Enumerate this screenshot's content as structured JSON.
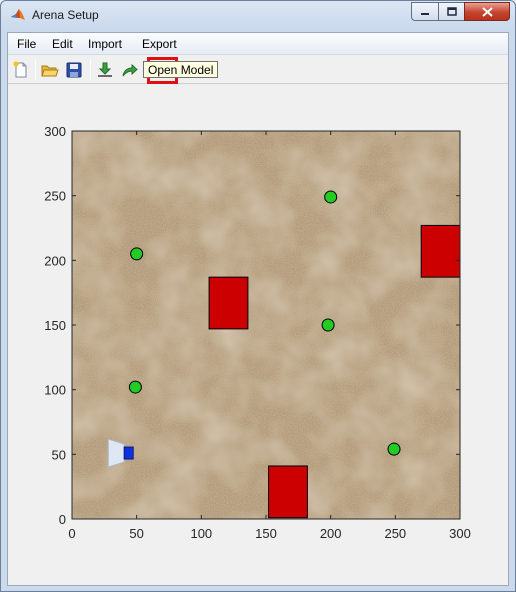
{
  "window": {
    "title": "Arena Setup"
  },
  "menu": [
    {
      "label": "File"
    },
    {
      "label": "Edit"
    },
    {
      "label": "Import"
    },
    {
      "label": "Export"
    }
  ],
  "toolbar": [
    {
      "icon": "new-file-icon"
    },
    {
      "icon": "open-folder-icon"
    },
    {
      "icon": "save-icon"
    },
    {
      "icon": "import-icon"
    },
    {
      "icon": "export-icon"
    },
    {
      "icon": "open-model-icon",
      "highlighted": true
    }
  ],
  "tooltip": {
    "text": "Open Model"
  },
  "chart_data": {
    "type": "scatter",
    "xlim": [
      0,
      300
    ],
    "ylim": [
      0,
      300
    ],
    "x_ticks": [
      "0",
      "50",
      "100",
      "150",
      "200",
      "250",
      "300"
    ],
    "y_ticks": [
      "0",
      "50",
      "100",
      "150",
      "200",
      "250",
      "300"
    ],
    "background": "sand texture image",
    "points": [
      {
        "x": 50,
        "y": 205,
        "color": "#22cc22"
      },
      {
        "x": 200,
        "y": 249,
        "color": "#22cc22"
      },
      {
        "x": 198,
        "y": 150,
        "color": "#22cc22"
      },
      {
        "x": 49,
        "y": 102,
        "color": "#22cc22"
      },
      {
        "x": 249,
        "y": 54,
        "color": "#22cc22"
      }
    ],
    "obstacles": [
      {
        "x0": 106,
        "x1": 136,
        "y0": 147,
        "y1": 187,
        "color": "#cc0000"
      },
      {
        "x0": 270,
        "x1": 300,
        "y0": 187,
        "y1": 227,
        "color": "#cc0000"
      },
      {
        "x0": 152,
        "x1": 182,
        "y0": 1,
        "y1": 41,
        "color": "#cc0000"
      }
    ],
    "robot": {
      "x": 45,
      "y": 51,
      "color": "#1030e0"
    }
  }
}
